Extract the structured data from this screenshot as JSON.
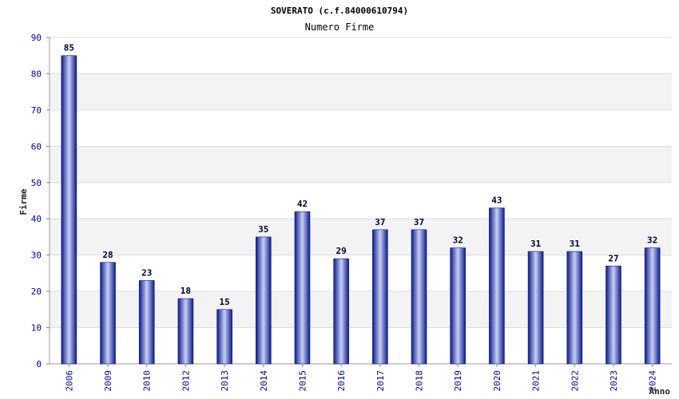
{
  "chart_data": {
    "type": "bar",
    "title": "SOVERATO (c.f.84000610794)",
    "subtitle": "Numero Firme",
    "xlabel": "Anno",
    "ylabel": "Firme",
    "ylim": [
      0,
      90
    ],
    "yticks": [
      0,
      10,
      20,
      30,
      40,
      50,
      60,
      70,
      80,
      90
    ],
    "grid": true,
    "categories": [
      "2006",
      "2009",
      "2010",
      "2012",
      "2013",
      "2014",
      "2015",
      "2016",
      "2017",
      "2018",
      "2019",
      "2020",
      "2021",
      "2022",
      "2023",
      "2024"
    ],
    "values": [
      85,
      28,
      23,
      18,
      15,
      35,
      42,
      29,
      37,
      37,
      32,
      43,
      31,
      31,
      27,
      32
    ],
    "colors": {
      "bar_edge": "#0a1a8c",
      "bar_center": "#c8d0f4",
      "band": "#f3f3f3",
      "grid": "#dddddd",
      "tick_text": "#0000aa"
    }
  }
}
